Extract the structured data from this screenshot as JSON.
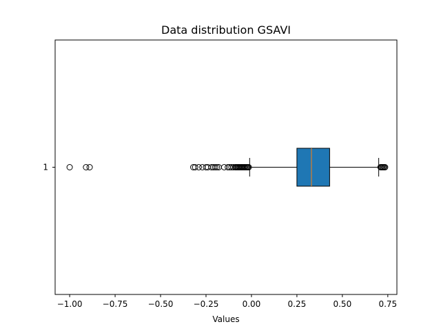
{
  "chart_data": {
    "type": "boxplot",
    "orientation": "horizontal",
    "title": "Data distribution GSAVI",
    "xlabel": "Values",
    "ylabel": "",
    "xlim": [
      -1.08,
      0.8
    ],
    "x_ticks": [
      -1.0,
      -0.75,
      -0.5,
      -0.25,
      0.0,
      0.25,
      0.5,
      0.75
    ],
    "x_tick_labels": [
      "−1.00",
      "−0.75",
      "−0.50",
      "−0.25",
      "0.00",
      "0.25",
      "0.50",
      "0.75"
    ],
    "y_tick_labels": [
      "1"
    ],
    "series": [
      {
        "category": "1",
        "whisker_low": -0.01,
        "q1": 0.25,
        "median": 0.33,
        "q3": 0.43,
        "whisker_high": 0.7,
        "outliers": [
          -1.0,
          -0.91,
          -0.89,
          -0.32,
          -0.31,
          -0.29,
          -0.27,
          -0.25,
          -0.24,
          -0.22,
          -0.21,
          -0.2,
          -0.19,
          -0.18,
          -0.15,
          -0.13,
          -0.12,
          -0.11,
          -0.1,
          -0.09,
          -0.085,
          -0.08,
          -0.075,
          -0.07,
          -0.065,
          -0.06,
          -0.055,
          -0.05,
          -0.045,
          -0.04,
          -0.035,
          -0.03,
          -0.025,
          -0.02,
          -0.015,
          0.71,
          0.715,
          0.72,
          0.725,
          0.73,
          0.735
        ]
      }
    ],
    "colors": {
      "box_fill": "#1f77b4",
      "median": "#ff7f0e",
      "lines": "#000000"
    },
    "grid": false,
    "legend": "none"
  }
}
